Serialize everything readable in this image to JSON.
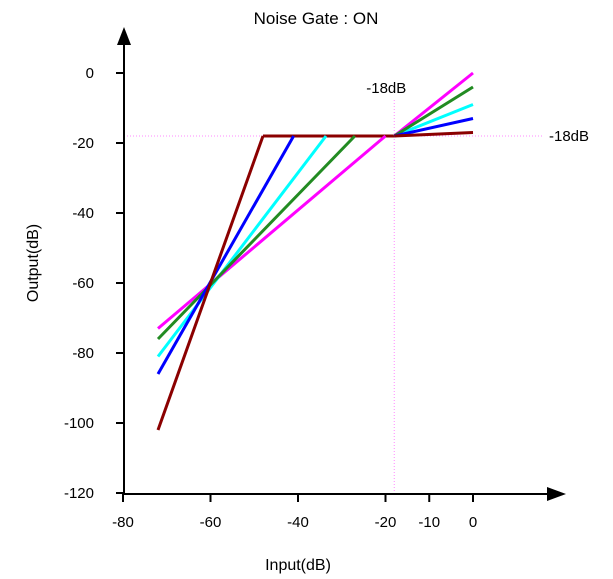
{
  "chart_data": {
    "type": "line",
    "title": "Noise Gate : ON",
    "xlabel": "Input(dB)",
    "ylabel": "Output(dB)",
    "xlim": [
      -80,
      0
    ],
    "ylim": [
      -120,
      0
    ],
    "x_ticks": [
      -80,
      -60,
      -40,
      -20,
      -10,
      0
    ],
    "y_ticks": [
      0,
      -20,
      -40,
      -60,
      -80,
      -100,
      -120
    ],
    "grid": false,
    "reference_lines": [
      {
        "orientation": "vertical",
        "value": -18,
        "label": "-18dB",
        "color": "#ff88ff"
      },
      {
        "orientation": "horizontal",
        "value": -18,
        "label": "-18dB",
        "color": "#ff88ff"
      }
    ],
    "series": [
      {
        "color": "#ff00ff",
        "x": [
          -72,
          -18,
          0
        ],
        "y": [
          -73,
          -18,
          0
        ]
      },
      {
        "color": "#00ffff",
        "x": [
          -72,
          -18,
          0
        ],
        "y": [
          -81,
          -18,
          -9
        ]
      },
      {
        "color": "#228b22",
        "x": [
          -72,
          -18,
          0
        ],
        "y": [
          -76,
          -18,
          -4
        ]
      },
      {
        "color": "#0000ff",
        "x": [
          -72,
          -18,
          0
        ],
        "y": [
          -86,
          -18,
          -13
        ]
      },
      {
        "color": "#8b0000",
        "x": [
          -72,
          -48,
          -18,
          0
        ],
        "y": [
          -102,
          -18,
          -18,
          -17
        ]
      }
    ],
    "knees": [
      {
        "color": "#ff00ff",
        "x": -20,
        "y": -18
      },
      {
        "color": "#228b22",
        "x": -27,
        "y": -18
      },
      {
        "color": "#00ffff",
        "x": -33.6,
        "y": -18
      },
      {
        "color": "#0000ff",
        "x": -41,
        "y": -18
      },
      {
        "color": "#8b0000",
        "x": -48,
        "y": -18
      }
    ]
  }
}
